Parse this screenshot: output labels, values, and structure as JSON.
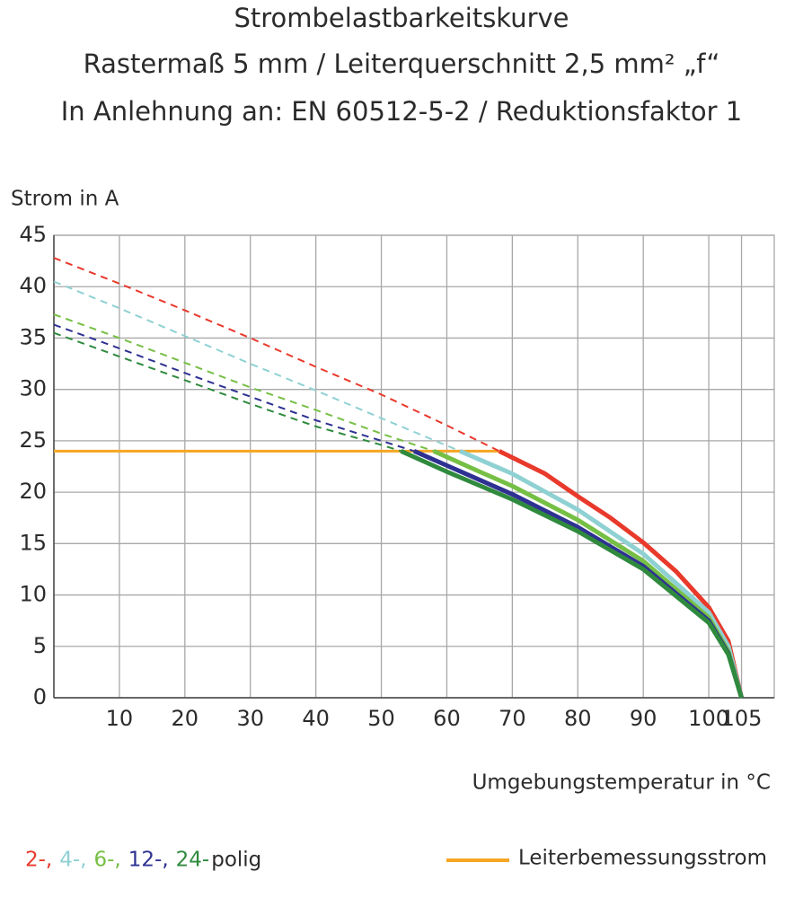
{
  "chart_data": {
    "type": "line",
    "title": [
      "Strombelastbarkeitskurve",
      "Rastermaß 5 mm / Leiterquerschnitt 2,5 mm² „f“",
      "In Anlehnung an: EN 60512-5-2 / Reduktionsfaktor 1"
    ],
    "y_label": "Strom in A",
    "x_label": "Umgebungstemperatur in °C",
    "xlim": [
      0,
      110
    ],
    "xticks": [
      10,
      20,
      30,
      40,
      50,
      60,
      70,
      80,
      90,
      100,
      105
    ],
    "ylim": [
      0,
      45
    ],
    "yticks": [
      0,
      5,
      10,
      15,
      20,
      25,
      30,
      35,
      40,
      45
    ],
    "grid": true,
    "series": [
      {
        "name": "2-,",
        "color": "#e8392b",
        "x": [
          0,
          10,
          20,
          30,
          40,
          50,
          60,
          68,
          75,
          80,
          85,
          90,
          95,
          100,
          103,
          105
        ],
        "values": [
          42.8,
          40.3,
          37.7,
          35,
          32.2,
          29.5,
          26.5,
          24,
          21.8,
          19.6,
          17.5,
          15.1,
          12.3,
          8.8,
          5.5,
          0
        ]
      },
      {
        "name": "4-,",
        "color": "#8fd1d3",
        "x": [
          0,
          10,
          20,
          30,
          40,
          50,
          62,
          70,
          80,
          90,
          100,
          103,
          105
        ],
        "values": [
          40.5,
          37.9,
          35.2,
          32.5,
          29.9,
          27.2,
          24,
          21.8,
          18.3,
          14,
          8.3,
          5,
          0
        ]
      },
      {
        "name": "6-,",
        "color": "#76bf45",
        "x": [
          0,
          10,
          20,
          30,
          40,
          50,
          58,
          65,
          70,
          80,
          90,
          100,
          103,
          105
        ],
        "values": [
          37.3,
          35,
          32.6,
          30.2,
          28,
          25.7,
          24,
          22,
          20.6,
          17.3,
          13.3,
          7.8,
          4.5,
          0
        ]
      },
      {
        "name": "12-,",
        "color": "#2e3192",
        "x": [
          0,
          10,
          20,
          30,
          40,
          50,
          55,
          60,
          70,
          80,
          90,
          100,
          103,
          105
        ],
        "values": [
          36.3,
          34,
          31.6,
          29.3,
          27,
          25,
          24,
          22.6,
          19.8,
          16.6,
          12.8,
          7.5,
          4.3,
          0
        ]
      },
      {
        "name": "24-",
        "color": "#2f8a3e",
        "x": [
          0,
          10,
          20,
          30,
          40,
          50,
          53,
          60,
          70,
          80,
          90,
          100,
          103,
          105
        ],
        "values": [
          35.5,
          33.2,
          30.9,
          28.6,
          26.4,
          24.6,
          24,
          22,
          19.3,
          16.2,
          12.5,
          7.3,
          4.2,
          0
        ]
      }
    ],
    "legend_suffix": "polig",
    "rated": {
      "name": "Leiterbemessungsstrom",
      "color": "#f5a623",
      "x": [
        0,
        68
      ],
      "values": [
        24,
        24
      ]
    }
  }
}
